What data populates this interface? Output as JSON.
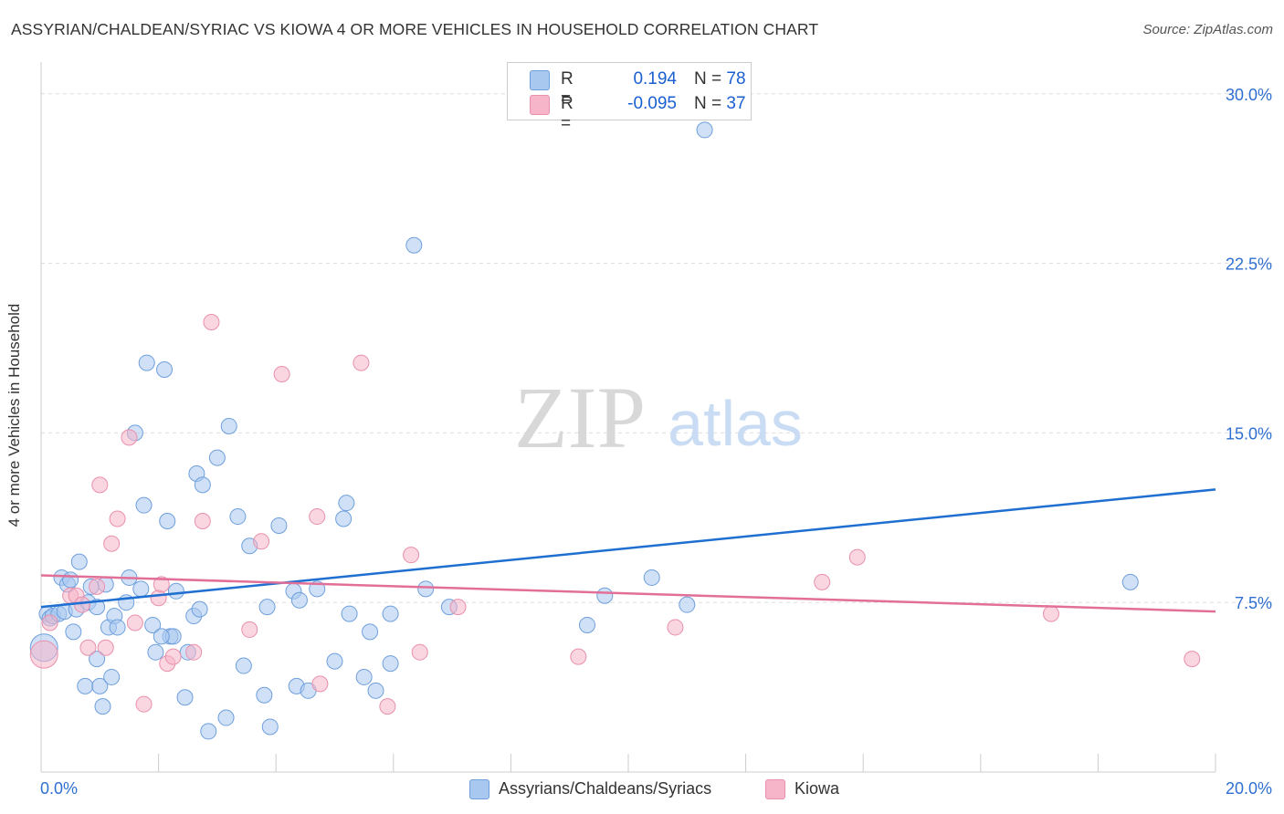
{
  "header": {
    "title": "ASSYRIAN/CHALDEAN/SYRIAC VS KIOWA 4 OR MORE VEHICLES IN HOUSEHOLD CORRELATION CHART",
    "source": "Source: ZipAtlas.com"
  },
  "watermark": {
    "zip": "ZIP",
    "atlas": "atlas"
  },
  "legend": {
    "rows": [
      {
        "r_label": "R =",
        "r_value": "0.194",
        "n_label": "N =",
        "n_value": "78",
        "color": "#a9c8f0"
      },
      {
        "r_label": "R =",
        "r_value": "-0.095",
        "n_label": "N =",
        "n_value": "37",
        "color": "#f6b5c8"
      }
    ]
  },
  "bottom_legend": {
    "items": [
      {
        "label": "Assyrians/Chaldeans/Syriacs",
        "color": "#a9c8f0"
      },
      {
        "label": "Kiowa",
        "color": "#f6b5c8"
      }
    ]
  },
  "chart_data": {
    "type": "scatter",
    "title": "ASSYRIAN/CHALDEAN/SYRIAC VS KIOWA 4 OR MORE VEHICLES IN HOUSEHOLD CORRELATION CHART",
    "xlabel": "",
    "ylabel": "4 or more Vehicles in Household",
    "xlim": [
      0,
      20
    ],
    "ylim": [
      0,
      31
    ],
    "x_tick_labels": [
      {
        "value": 0,
        "label": "0.0%"
      },
      {
        "value": 20,
        "label": "20.0%"
      }
    ],
    "y_tick_labels": [
      {
        "value": 7.5,
        "label": "7.5%"
      },
      {
        "value": 15.0,
        "label": "15.0%"
      },
      {
        "value": 22.5,
        "label": "22.5%"
      },
      {
        "value": 30.0,
        "label": "30.0%"
      }
    ],
    "grid": true,
    "legend_position": "top-center",
    "series": [
      {
        "name": "Assyrians/Chaldeans/Syriacs",
        "color": "#a9c8f0",
        "stroke": "#6e9fdc",
        "trend": {
          "x": [
            0,
            20
          ],
          "y": [
            7.3,
            12.5
          ],
          "color": "#1f6fd1"
        },
        "points": [
          [
            0.05,
            5.5
          ],
          [
            0.1,
            7.0
          ],
          [
            0.15,
            6.8
          ],
          [
            0.2,
            6.9
          ],
          [
            0.3,
            7.0
          ],
          [
            0.35,
            8.6
          ],
          [
            0.4,
            7.1
          ],
          [
            0.45,
            8.3
          ],
          [
            0.5,
            8.5
          ],
          [
            0.55,
            6.2
          ],
          [
            0.6,
            7.2
          ],
          [
            0.65,
            9.3
          ],
          [
            0.75,
            3.8
          ],
          [
            0.8,
            7.5
          ],
          [
            0.85,
            8.2
          ],
          [
            0.95,
            7.3
          ],
          [
            1.0,
            3.8
          ],
          [
            1.1,
            8.3
          ],
          [
            1.15,
            6.4
          ],
          [
            1.2,
            4.2
          ],
          [
            1.25,
            6.9
          ],
          [
            1.3,
            6.4
          ],
          [
            1.45,
            7.5
          ],
          [
            1.5,
            8.6
          ],
          [
            1.6,
            15.0
          ],
          [
            1.7,
            8.1
          ],
          [
            1.75,
            11.8
          ],
          [
            1.8,
            18.1
          ],
          [
            1.9,
            6.5
          ],
          [
            1.95,
            5.3
          ],
          [
            2.1,
            17.8
          ],
          [
            2.15,
            11.1
          ],
          [
            2.2,
            6.0
          ],
          [
            2.25,
            6.0
          ],
          [
            2.3,
            8.0
          ],
          [
            2.45,
            3.3
          ],
          [
            2.5,
            5.3
          ],
          [
            2.6,
            6.9
          ],
          [
            2.65,
            13.2
          ],
          [
            2.7,
            7.2
          ],
          [
            2.75,
            12.7
          ],
          [
            2.85,
            1.8
          ],
          [
            3.0,
            13.9
          ],
          [
            3.15,
            2.4
          ],
          [
            3.2,
            15.3
          ],
          [
            3.35,
            11.3
          ],
          [
            3.45,
            4.7
          ],
          [
            3.55,
            10.0
          ],
          [
            3.8,
            3.4
          ],
          [
            3.85,
            7.3
          ],
          [
            4.05,
            10.9
          ],
          [
            4.3,
            8.0
          ],
          [
            4.35,
            3.8
          ],
          [
            4.4,
            7.6
          ],
          [
            4.55,
            3.6
          ],
          [
            4.7,
            8.1
          ],
          [
            5.0,
            4.9
          ],
          [
            5.15,
            11.2
          ],
          [
            5.2,
            11.9
          ],
          [
            5.25,
            7.0
          ],
          [
            5.5,
            4.2
          ],
          [
            5.6,
            6.2
          ],
          [
            5.7,
            3.6
          ],
          [
            5.95,
            4.8
          ],
          [
            5.95,
            7.0
          ],
          [
            6.35,
            23.3
          ],
          [
            6.55,
            8.1
          ],
          [
            6.95,
            7.3
          ],
          [
            9.3,
            6.5
          ],
          [
            9.6,
            7.8
          ],
          [
            10.4,
            8.6
          ],
          [
            11.0,
            7.4
          ],
          [
            11.3,
            28.4
          ],
          [
            18.55,
            8.4
          ],
          [
            1.05,
            2.9
          ],
          [
            3.9,
            2.0
          ],
          [
            0.95,
            5.0
          ],
          [
            2.05,
            6.0
          ]
        ]
      },
      {
        "name": "Kiowa",
        "color": "#f6b5c8",
        "stroke": "#e990ac",
        "trend": {
          "x": [
            0,
            20
          ],
          "y": [
            8.7,
            7.1
          ],
          "color": "#e16f98"
        },
        "points": [
          [
            0.05,
            5.2
          ],
          [
            0.15,
            6.6
          ],
          [
            0.5,
            7.8
          ],
          [
            0.6,
            7.8
          ],
          [
            0.7,
            7.4
          ],
          [
            0.8,
            5.5
          ],
          [
            0.95,
            8.2
          ],
          [
            1.0,
            12.7
          ],
          [
            1.1,
            5.5
          ],
          [
            1.2,
            10.1
          ],
          [
            1.3,
            11.2
          ],
          [
            1.5,
            14.8
          ],
          [
            1.6,
            6.6
          ],
          [
            1.75,
            3.0
          ],
          [
            2.0,
            7.7
          ],
          [
            2.05,
            8.3
          ],
          [
            2.15,
            4.8
          ],
          [
            2.25,
            5.1
          ],
          [
            2.6,
            5.3
          ],
          [
            2.75,
            11.1
          ],
          [
            2.9,
            19.9
          ],
          [
            3.55,
            6.3
          ],
          [
            3.75,
            10.2
          ],
          [
            4.1,
            17.6
          ],
          [
            4.7,
            11.3
          ],
          [
            4.75,
            3.9
          ],
          [
            5.45,
            18.1
          ],
          [
            5.9,
            2.9
          ],
          [
            6.3,
            9.6
          ],
          [
            6.45,
            5.3
          ],
          [
            7.1,
            7.3
          ],
          [
            9.15,
            5.1
          ],
          [
            10.8,
            6.4
          ],
          [
            13.3,
            8.4
          ],
          [
            13.9,
            9.5
          ],
          [
            17.2,
            7.0
          ],
          [
            19.6,
            5.0
          ]
        ]
      }
    ]
  }
}
